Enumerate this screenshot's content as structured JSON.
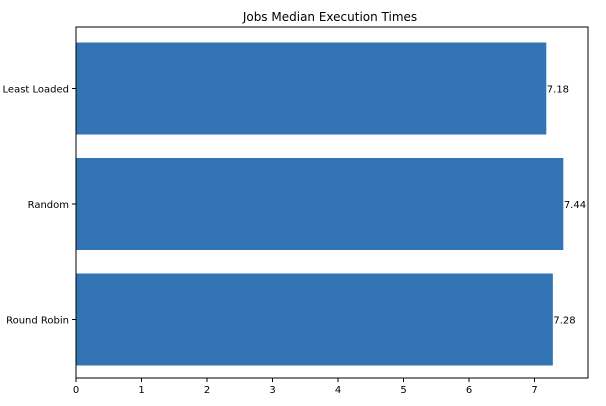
{
  "chart_data": {
    "type": "bar",
    "orientation": "horizontal",
    "title": "Jobs Median Execution Times",
    "xlabel": "",
    "ylabel": "",
    "categories": [
      "Round Robin",
      "Random",
      "Least Loaded"
    ],
    "values": [
      7.28,
      7.44,
      7.18
    ],
    "value_labels": [
      "7.28",
      "7.44",
      "7.18"
    ],
    "xlim": [
      0,
      7.8
    ],
    "xticks": [
      0,
      1,
      2,
      3,
      4,
      5,
      6,
      7
    ],
    "xtick_labels": [
      "0",
      "1",
      "2",
      "3",
      "4",
      "5",
      "6",
      "7"
    ],
    "bar_color": "#3274b4",
    "grid": false,
    "legend": "none"
  }
}
